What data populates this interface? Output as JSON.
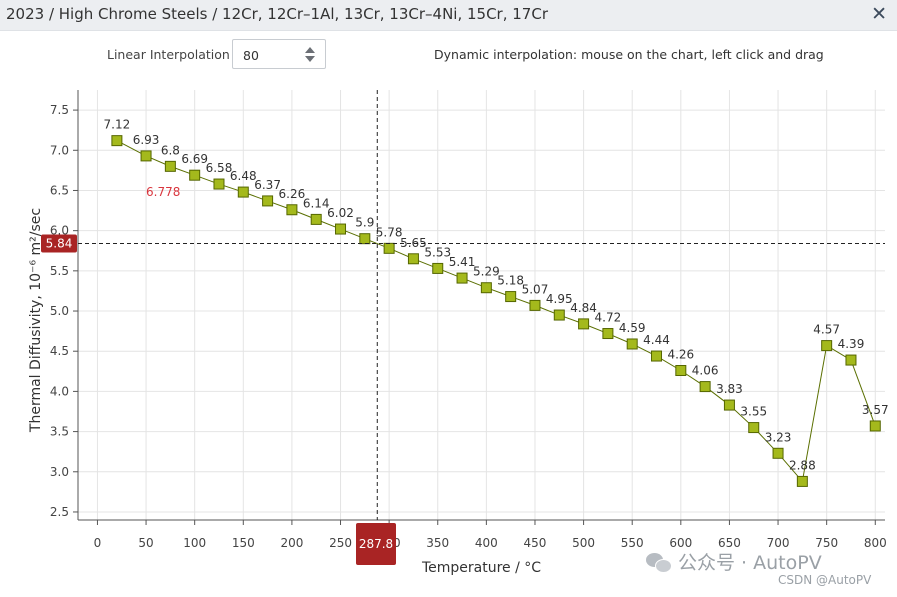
{
  "window": {
    "title": "2023 / High Chrome Steels / 12Cr, 12Cr–1Al, 13Cr, 13Cr–4Ni, 15Cr, 17Cr",
    "close_symbol": "✕"
  },
  "controls": {
    "interpolation_label": "Linear Interpolation",
    "interpolation_value": "80",
    "hint": "Dynamic interpolation: mouse on the chart, left click and drag"
  },
  "watermark": {
    "wechat": "公众号 · AutoPV",
    "csdn": "CSDN @AutoPV"
  },
  "colors": {
    "line": "#5a6f00",
    "marker_fill": "#a4b91c",
    "marker_stroke": "#556600",
    "crosshair_badge": "#a92424",
    "interp_label": "#d9363e",
    "grid": "#e4e4e4"
  },
  "chart_data": {
    "type": "line",
    "title": "",
    "xlabel": "Temperature / °C",
    "ylabel": "Thermal Diffusivity, 10⁻⁶ m²/sec",
    "xlim": [
      -20,
      810
    ],
    "ylim": [
      2.4,
      7.75
    ],
    "xticks": [
      0,
      50,
      100,
      150,
      200,
      250,
      300,
      350,
      400,
      450,
      500,
      550,
      600,
      650,
      700,
      750,
      800
    ],
    "yticks": [
      2.5,
      3.0,
      3.5,
      4.0,
      4.5,
      5.0,
      5.5,
      6.0,
      6.5,
      7.0,
      7.5
    ],
    "ytick_labels": [
      "2.5",
      "3.0",
      "3.5",
      "4.0",
      "4.5",
      "5.0",
      "5.5",
      "6.0",
      "6.5",
      "7.0",
      "7.5"
    ],
    "grid": true,
    "series": [
      {
        "name": "Thermal Diffusivity",
        "x": [
          20,
          50,
          75,
          100,
          125,
          150,
          175,
          200,
          225,
          250,
          275,
          300,
          325,
          350,
          375,
          400,
          425,
          450,
          475,
          500,
          525,
          550,
          575,
          600,
          625,
          650,
          675,
          700,
          725,
          750,
          775,
          800
        ],
        "values": [
          7.12,
          6.93,
          6.8,
          6.69,
          6.58,
          6.48,
          6.37,
          6.26,
          6.14,
          6.02,
          5.9,
          5.78,
          5.65,
          5.53,
          5.41,
          5.29,
          5.18,
          5.07,
          4.95,
          4.84,
          4.72,
          4.59,
          4.44,
          4.26,
          4.06,
          3.83,
          3.55,
          3.23,
          2.88,
          4.57,
          4.39,
          3.57
        ],
        "labels": [
          "7.12",
          "6.93",
          "6.8",
          "6.69",
          "6.58",
          "6.48",
          "6.37",
          "6.26",
          "6.14",
          "6.02",
          "5.9",
          "5.78",
          "5.65",
          "5.53",
          "5.41",
          "5.29",
          "5.18",
          "5.07",
          "4.95",
          "4.84",
          "4.72",
          "4.59",
          "4.44",
          "4.26",
          "4.06",
          "3.83",
          "3.55",
          "3.23",
          "2.88",
          "4.57",
          "4.39",
          "3.57"
        ]
      }
    ],
    "interpolated_point": {
      "x": 80,
      "value": 6.778,
      "label": "6.778"
    },
    "crosshair": {
      "x": 287.8,
      "y": 5.84,
      "x_label": "287.8",
      "y_label": "5.84"
    }
  }
}
